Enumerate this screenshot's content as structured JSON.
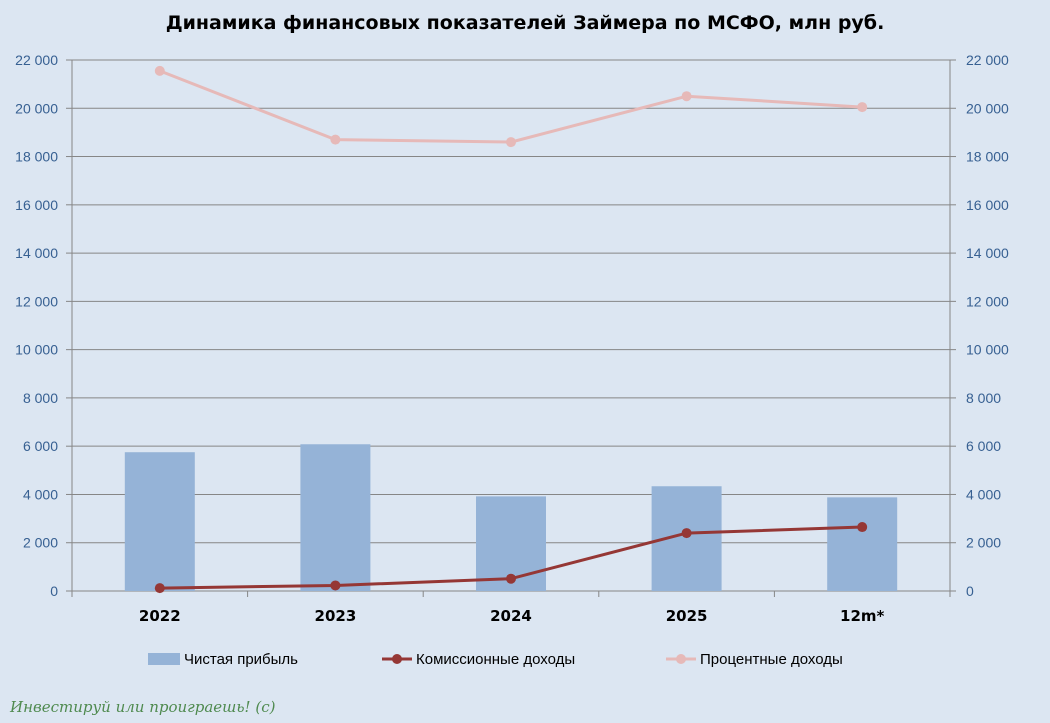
{
  "chart_data": {
    "type": "bar",
    "title": "Динамика финансовых показателей Займера по МСФО, млн руб.",
    "categories": [
      "2022",
      "2023",
      "2024",
      "2025",
      "12m*"
    ],
    "series": [
      {
        "name": "Чистая прибыль",
        "kind": "bar",
        "color": "#95b3d7",
        "values": [
          5750,
          6080,
          3920,
          4340,
          3880
        ]
      },
      {
        "name": "Комиссионные доходы",
        "kind": "line",
        "color": "#953735",
        "values": [
          120,
          230,
          510,
          2400,
          2650
        ]
      },
      {
        "name": "Процентные доходы",
        "kind": "line",
        "color": "#e6b9b8",
        "values": [
          21550,
          18700,
          18600,
          20500,
          20050
        ]
      }
    ],
    "ylim": [
      0,
      22000
    ],
    "yticks": [
      "0",
      "2 000",
      "4 000",
      "6 000",
      "8 000",
      "10 000",
      "12 000",
      "14 000",
      "16 000",
      "18 000",
      "20 000",
      "22 000"
    ],
    "secondary_yticks": [
      "0",
      "2 000",
      "4 000",
      "6 000",
      "8 000",
      "10 000",
      "12 000",
      "14 000",
      "16 000",
      "18 000",
      "20 000",
      "22 000"
    ],
    "grid": true,
    "legend_position": "bottom"
  },
  "watermark": "Инвестируй или проиграешь! (с)"
}
